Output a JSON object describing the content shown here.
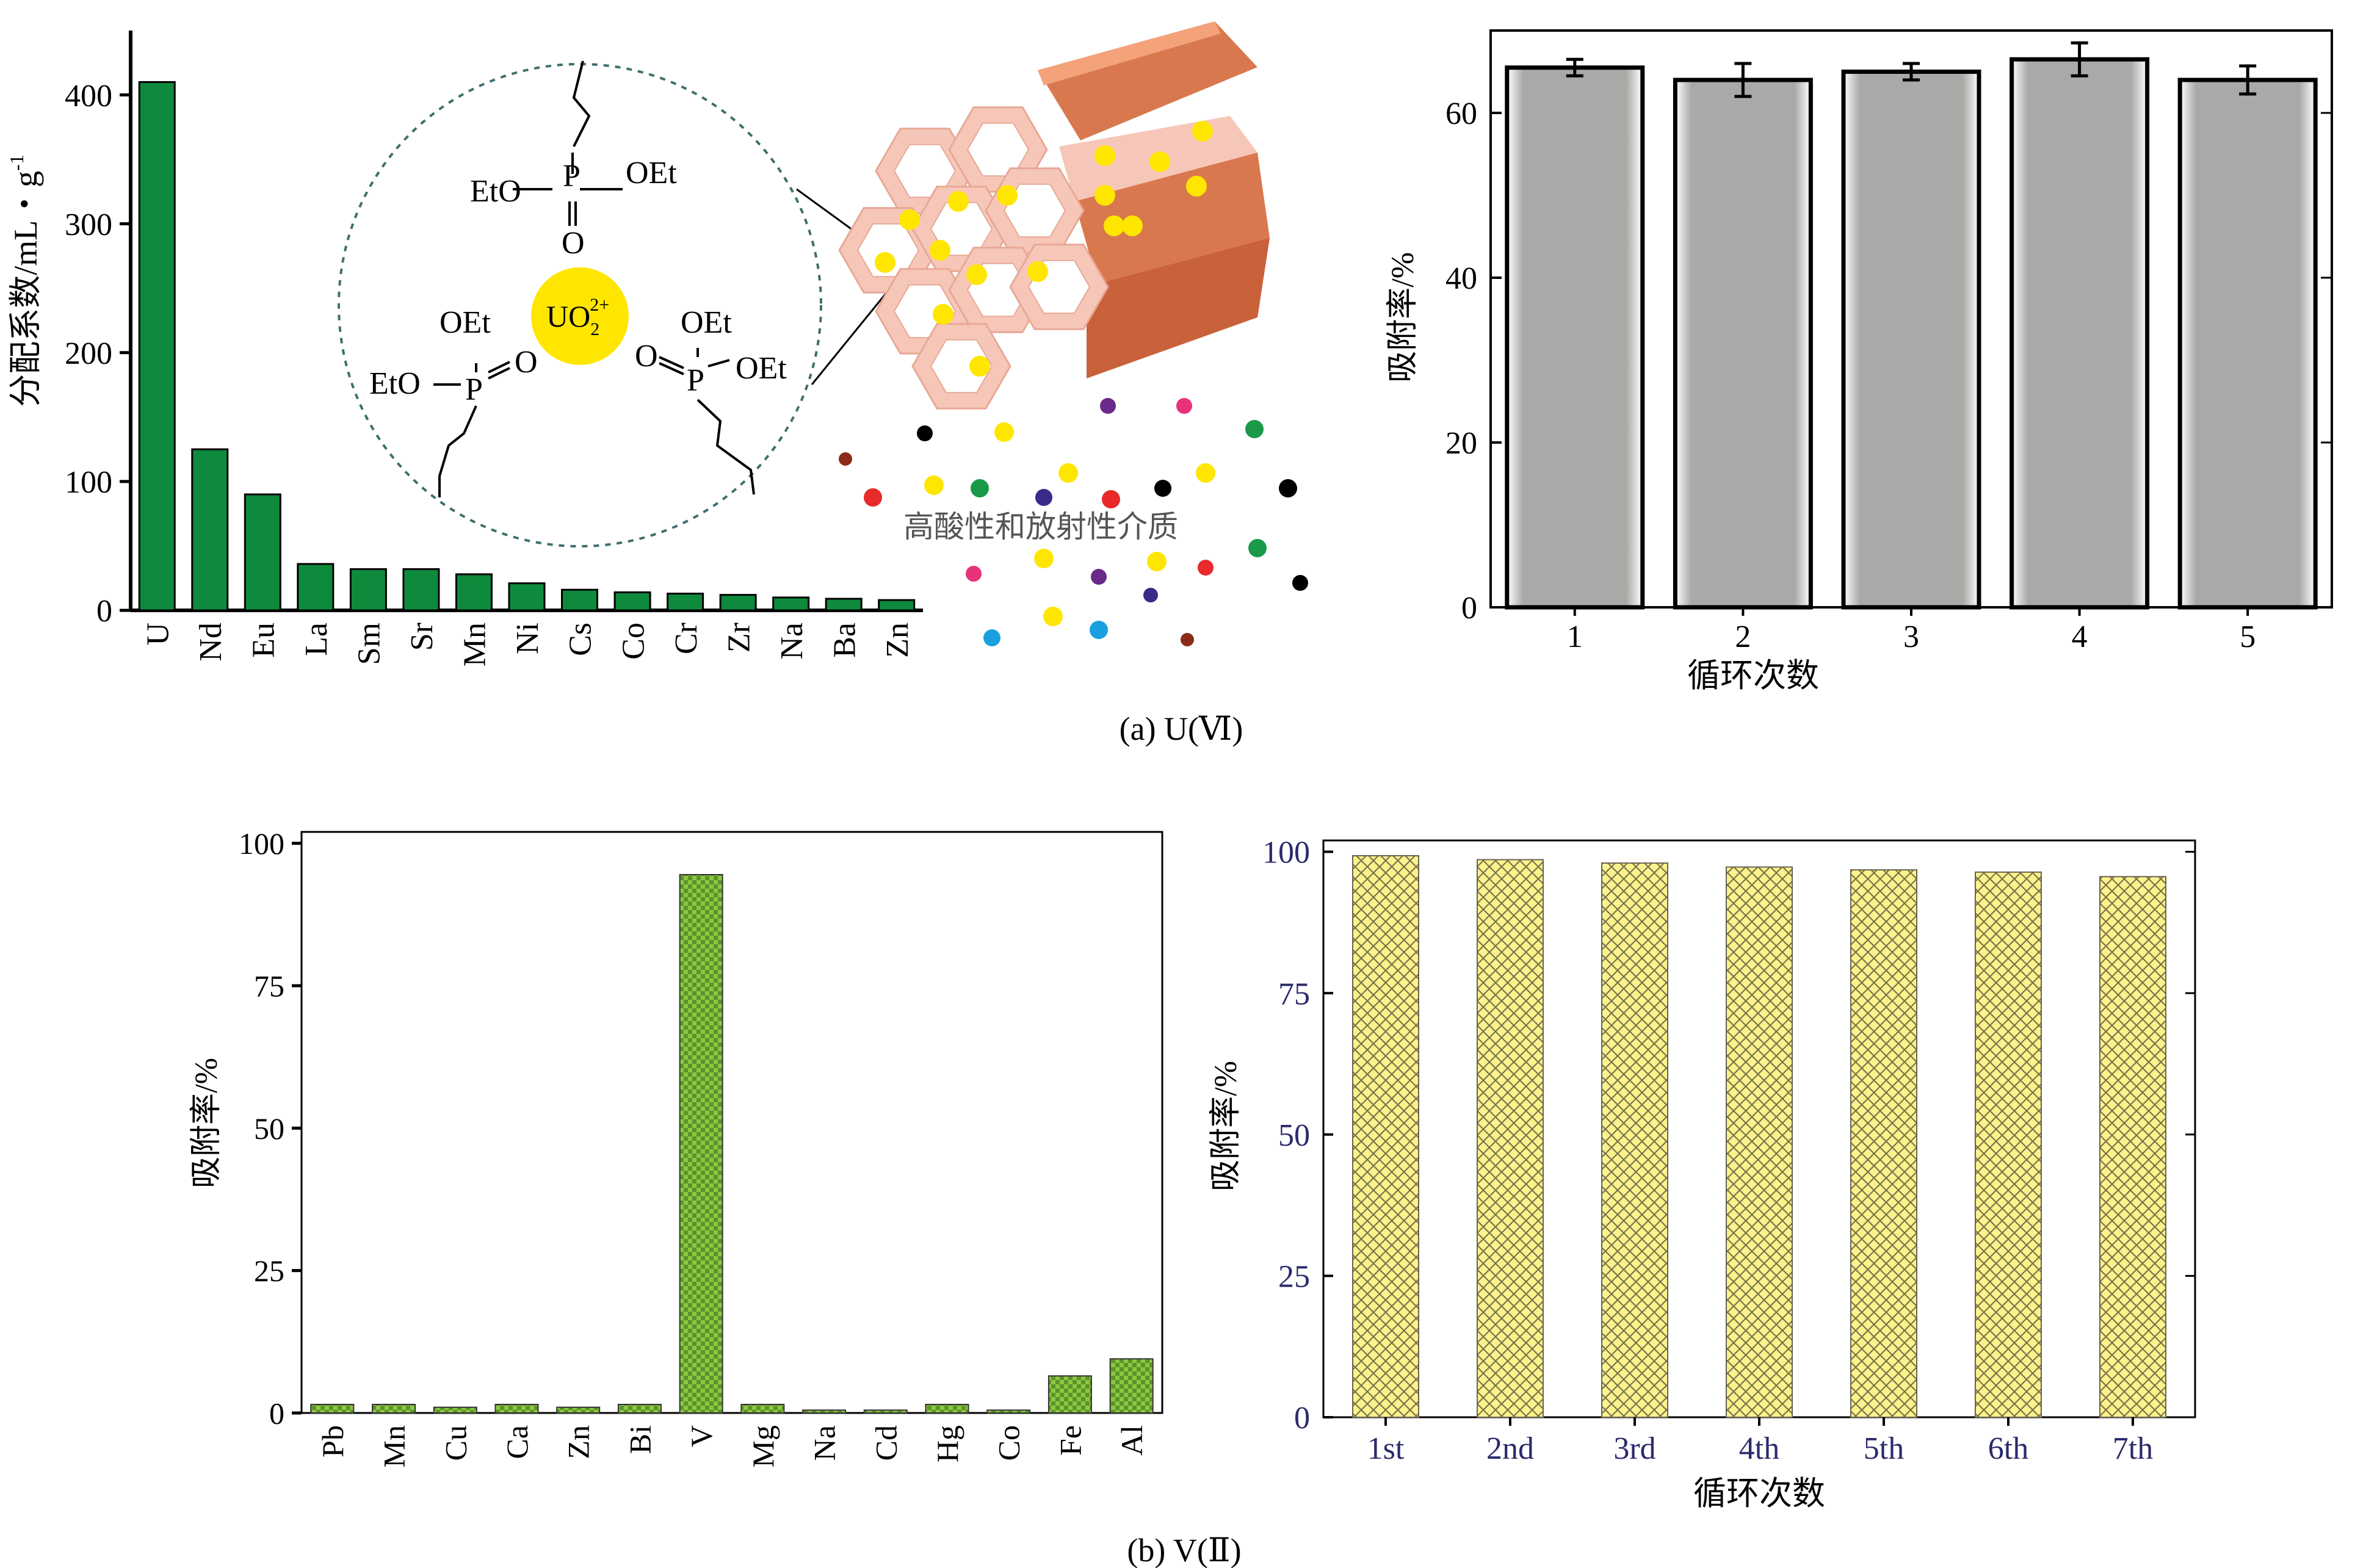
{
  "colors": {
    "green_bar": "#0e8a3c",
    "gray_bar": "#a7aaa6",
    "checker_green": "#8ec63f",
    "checker_dark": "#2f6b1f",
    "yellow_fill": "#fbf28d",
    "yellow_hatch": "#7a7448",
    "navy_tick": "#2b2a6b",
    "sphere_yellow": "#ffe600",
    "honeycomb": "#f6c7b8",
    "copper": "#d9784f",
    "dashed_circle": "#3e6f6d"
  },
  "inset": {
    "medium_label": "高酸性和放射性介质",
    "uranyl": {
      "base": "UO",
      "sub": "2",
      "sup": "2+"
    },
    "labels": {
      "top_left": "EtO",
      "top_right": "OEt",
      "top_p": "P",
      "top_o": "O",
      "left_oet": "OEt",
      "left_eto": "EtO",
      "left_p": "P",
      "left_o": "O",
      "right_oet_top": "OEt",
      "right_oet": "OEt",
      "right_p": "P",
      "right_o": "O"
    },
    "dots": [
      {
        "color": "#000000"
      },
      {
        "color": "#ffe600"
      },
      {
        "color": "#6a2a8a"
      },
      {
        "color": "#e8327a"
      },
      {
        "color": "#1a9a48"
      },
      {
        "color": "#8b2b1a"
      },
      {
        "color": "#e82a2a"
      },
      {
        "color": "#ffe600"
      },
      {
        "color": "#1a9a48"
      },
      {
        "color": "#3a2a8a"
      },
      {
        "color": "#ffe600"
      },
      {
        "color": "#e82a2a"
      },
      {
        "color": "#000000"
      },
      {
        "color": "#ffe600"
      },
      {
        "color": "#000000"
      },
      {
        "color": "#e8327a"
      },
      {
        "color": "#ffe600"
      },
      {
        "color": "#6a2a8a"
      },
      {
        "color": "#ffe600"
      },
      {
        "color": "#e82a2a"
      },
      {
        "color": "#1a9a48"
      },
      {
        "color": "#000000"
      },
      {
        "color": "#3a2a8a"
      },
      {
        "color": "#1aa0e0"
      },
      {
        "color": "#ffe600"
      },
      {
        "color": "#1aa0e0"
      },
      {
        "color": "#8b2b1a"
      }
    ]
  },
  "captions": {
    "a": {
      "text": "(a) U(",
      "roman": "Ⅵ",
      "close": ")"
    },
    "b": {
      "text": "(b) V(",
      "roman": "Ⅱ",
      "close": ")"
    }
  },
  "chart_data": [
    {
      "id": "a_left",
      "type": "bar",
      "categories": [
        "U",
        "Nd",
        "Eu",
        "La",
        "Sm",
        "Sr",
        "Mn",
        "Ni",
        "Cs",
        "Co",
        "Cr",
        "Zr",
        "Na",
        "Ba",
        "Zn"
      ],
      "values": [
        410,
        125,
        90,
        36,
        32,
        32,
        28,
        21,
        16,
        14,
        13,
        12,
        10,
        9,
        8
      ],
      "ylabel": "分配系数/mL・g",
      "ylabel_sup": "-1",
      "ylim": [
        0,
        450
      ],
      "yticks": [
        0,
        100,
        200,
        300,
        400
      ],
      "title": "",
      "xlabel": "",
      "grid": false
    },
    {
      "id": "a_right",
      "type": "bar",
      "categories": [
        "1",
        "2",
        "3",
        "4",
        "5"
      ],
      "values": [
        65.5,
        64.0,
        65.0,
        66.5,
        64.0
      ],
      "errors": [
        1.0,
        2.0,
        1.0,
        2.0,
        1.7
      ],
      "xlabel": "循环次数",
      "ylabel": "吸附率/%",
      "ylim": [
        0,
        70
      ],
      "yticks": [
        0,
        20,
        40,
        60
      ],
      "title": "",
      "grid": false
    },
    {
      "id": "b_left",
      "type": "bar",
      "categories": [
        "Pb",
        "Mn",
        "Cu",
        "Ca",
        "Zn",
        "Bi",
        "V",
        "Mg",
        "Na",
        "Cd",
        "Hg",
        "Co",
        "Fe",
        "Al"
      ],
      "values": [
        1.5,
        1.5,
        1.0,
        1.5,
        1.0,
        1.5,
        94.5,
        1.5,
        0.5,
        0.5,
        1.5,
        0.5,
        6.5,
        9.5
      ],
      "ylabel": "吸附率/%",
      "ylim": [
        0,
        102
      ],
      "yticks": [
        0,
        25,
        50,
        75,
        100
      ],
      "title": "",
      "xlabel": "",
      "grid": false
    },
    {
      "id": "b_right",
      "type": "bar",
      "categories": [
        "1st",
        "2nd",
        "3rd",
        "4th",
        "5th",
        "6th",
        "7th"
      ],
      "values": [
        99.3,
        98.6,
        98.0,
        97.3,
        96.8,
        96.4,
        95.6
      ],
      "xlabel": "循环次数",
      "ylabel": "吸附率/%",
      "ylim": [
        0,
        102
      ],
      "yticks": [
        0,
        25,
        50,
        75,
        100
      ],
      "title": "",
      "grid": false
    }
  ]
}
